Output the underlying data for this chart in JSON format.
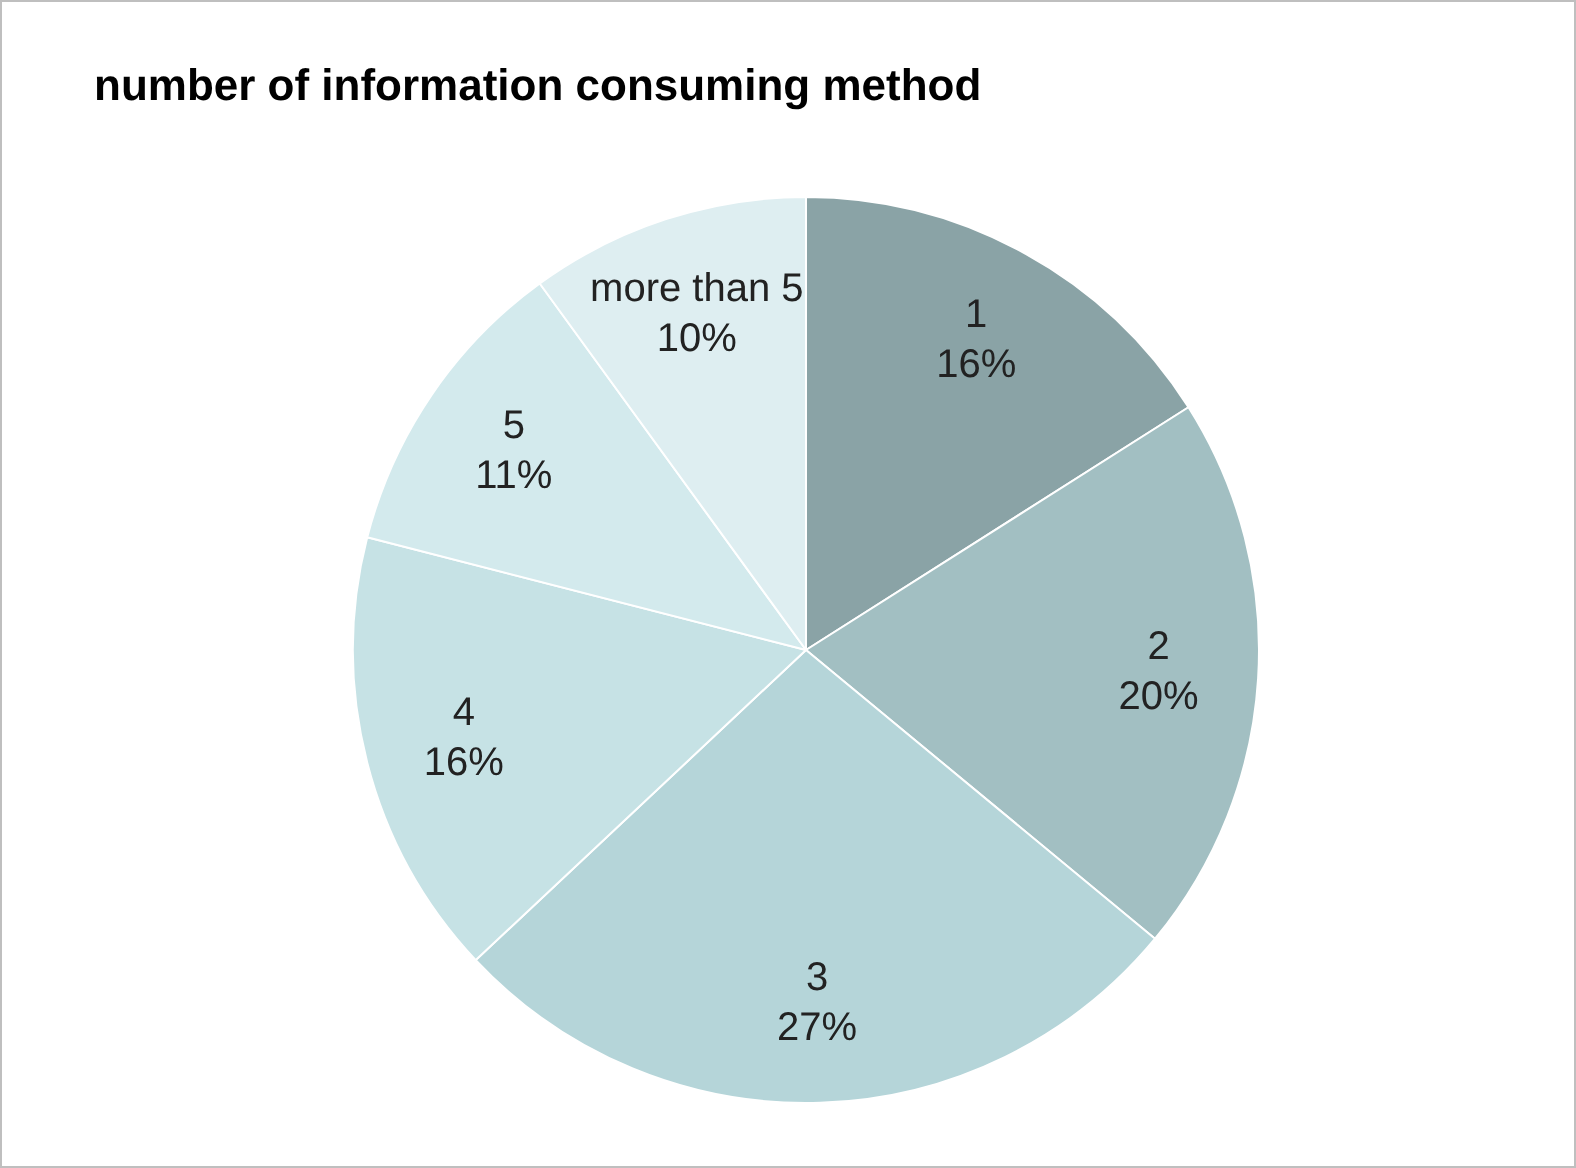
{
  "chart_data": {
    "type": "pie",
    "title": "number of information consuming method",
    "categories": [
      "1",
      "2",
      "3",
      "4",
      "5",
      "more than 5"
    ],
    "values": [
      16,
      20,
      27,
      16,
      11,
      10
    ],
    "colors": [
      "#8aa3a6",
      "#a2bfc2",
      "#b5d5d9",
      "#c6e2e5",
      "#d3eaed",
      "#deeef1"
    ],
    "value_labels": [
      "16%",
      "20%",
      "27%",
      "16%",
      "11%",
      "10%"
    ],
    "legend": false
  }
}
